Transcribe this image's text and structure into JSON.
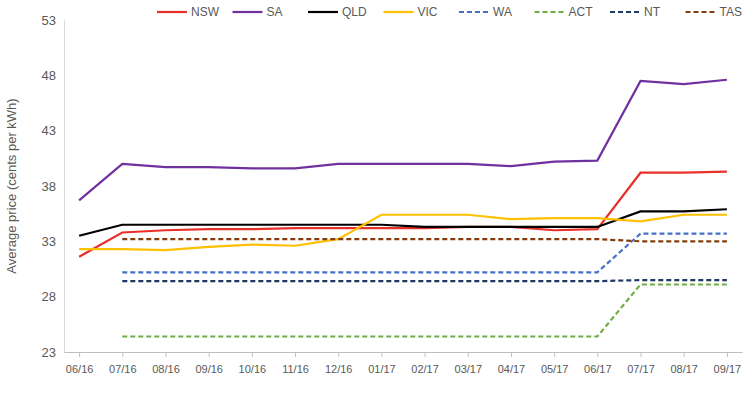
{
  "chart_data": {
    "type": "line",
    "y_label": "Average price (cents per kWh)",
    "categories": [
      "06/16",
      "07/16",
      "08/16",
      "09/16",
      "10/16",
      "11/16",
      "12/16",
      "01/17",
      "02/17",
      "03/17",
      "04/17",
      "05/17",
      "06/17",
      "07/17",
      "08/17",
      "09/17"
    ],
    "ylim": [
      23,
      53
    ],
    "yticks": [
      23,
      28,
      33,
      38,
      43,
      48,
      53
    ],
    "grid": false,
    "legend": "top",
    "series": [
      {
        "name": "NSW",
        "color": "#e8302a",
        "line_style": "solid",
        "values": [
          31.6,
          33.8,
          34.0,
          34.1,
          34.1,
          34.2,
          34.2,
          34.2,
          34.2,
          34.3,
          34.3,
          34.0,
          34.1,
          39.2,
          39.2,
          39.3
        ]
      },
      {
        "name": "SA",
        "color": "#7030a0",
        "line_style": "solid",
        "values": [
          36.7,
          40.0,
          39.7,
          39.7,
          39.6,
          39.6,
          40.0,
          40.0,
          40.0,
          40.0,
          39.8,
          40.2,
          40.3,
          47.5,
          47.2,
          47.6
        ]
      },
      {
        "name": "QLD",
        "color": "#000000",
        "line_style": "solid",
        "values": [
          33.5,
          34.5,
          34.5,
          34.5,
          34.5,
          34.5,
          34.5,
          34.5,
          34.3,
          34.3,
          34.3,
          34.3,
          34.3,
          35.7,
          35.7,
          35.9
        ]
      },
      {
        "name": "VIC",
        "color": "#ffc000",
        "line_style": "solid",
        "values": [
          32.3,
          32.3,
          32.2,
          32.5,
          32.7,
          32.6,
          33.2,
          35.4,
          35.4,
          35.4,
          35.0,
          35.1,
          35.1,
          34.8,
          35.4,
          35.4
        ]
      },
      {
        "name": "WA",
        "color": "#4472c4",
        "line_style": "dashed",
        "values": [
          null,
          30.2,
          30.2,
          30.2,
          30.2,
          30.2,
          30.2,
          30.2,
          30.2,
          30.2,
          30.2,
          30.2,
          30.2,
          33.7,
          33.7,
          33.7
        ]
      },
      {
        "name": "ACT",
        "color": "#70ad47",
        "line_style": "dashed",
        "values": [
          null,
          24.4,
          24.4,
          24.4,
          24.4,
          24.4,
          24.4,
          24.4,
          24.4,
          24.4,
          24.4,
          24.4,
          24.4,
          29.1,
          29.1,
          29.1
        ]
      },
      {
        "name": "NT",
        "color": "#203864",
        "line_style": "dashed",
        "values": [
          null,
          29.4,
          29.4,
          29.4,
          29.4,
          29.4,
          29.4,
          29.4,
          29.4,
          29.4,
          29.4,
          29.4,
          29.4,
          29.5,
          29.5,
          29.5
        ]
      },
      {
        "name": "TAS",
        "color": "#843c0c",
        "line_style": "dashed",
        "values": [
          null,
          33.2,
          33.2,
          33.2,
          33.2,
          33.2,
          33.2,
          33.2,
          33.2,
          33.2,
          33.2,
          33.2,
          33.2,
          33.0,
          33.0,
          33.0
        ]
      }
    ]
  }
}
